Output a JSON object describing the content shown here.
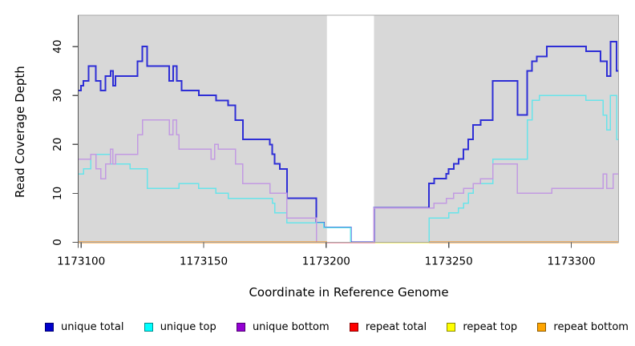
{
  "chart_data": {
    "type": "step-line",
    "title": "",
    "xlabel": "Coordinate in Reference Genome",
    "ylabel": "Read Coverage Depth",
    "xlim": [
      1173098.8,
      1173319.3
    ],
    "ylim": [
      0,
      46.4
    ],
    "grid": false,
    "plot_bg": "#d8d8d8",
    "border_color": "#a8a8a8",
    "axis_color": "#555555",
    "tick_label_color": "#000000",
    "masked_region": {
      "from": 1173200.3,
      "to": 1173219.5,
      "color": "#ffffff"
    },
    "x_ticks": [
      {
        "v": 1173100,
        "label": "1173100"
      },
      {
        "v": 1173150,
        "label": "1173150"
      },
      {
        "v": 1173200,
        "label": "1173200"
      },
      {
        "v": 1173250,
        "label": "1173250"
      },
      {
        "v": 1173300,
        "label": "1173300"
      }
    ],
    "y_ticks": [
      {
        "v": 0,
        "label": "0"
      },
      {
        "v": 10,
        "label": "10"
      },
      {
        "v": 20,
        "label": "20"
      },
      {
        "v": 30,
        "label": "30"
      },
      {
        "v": 40,
        "label": "40"
      }
    ],
    "series": [
      {
        "name": "unique total",
        "color": "#2e2ed6",
        "width": 2,
        "points": [
          [
            1173099,
            31
          ],
          [
            1173100,
            32
          ],
          [
            1173101,
            33
          ],
          [
            1173103,
            36
          ],
          [
            1173106,
            33
          ],
          [
            1173108,
            31
          ],
          [
            1173110,
            34
          ],
          [
            1173112,
            35
          ],
          [
            1173113,
            32
          ],
          [
            1173114,
            34
          ],
          [
            1173123,
            37
          ],
          [
            1173125,
            40
          ],
          [
            1173127,
            36
          ],
          [
            1173136,
            33
          ],
          [
            1173137.5,
            36
          ],
          [
            1173139,
            33
          ],
          [
            1173141,
            31
          ],
          [
            1173148,
            30
          ],
          [
            1173155,
            29
          ],
          [
            1173160,
            28
          ],
          [
            1173163,
            25
          ],
          [
            1173166,
            21
          ],
          [
            1173177,
            20
          ],
          [
            1173178,
            18
          ],
          [
            1173179,
            16
          ],
          [
            1173181,
            15
          ],
          [
            1173184,
            9
          ],
          [
            1173196,
            4
          ],
          [
            1173199,
            3
          ],
          [
            1173210,
            0
          ],
          [
            1173219.5,
            7
          ],
          [
            1173242,
            12
          ],
          [
            1173244,
            13
          ],
          [
            1173249,
            14
          ],
          [
            1173250,
            15
          ],
          [
            1173252,
            16
          ],
          [
            1173254,
            17
          ],
          [
            1173256,
            19
          ],
          [
            1173258,
            21
          ],
          [
            1173260,
            24
          ],
          [
            1173263,
            25
          ],
          [
            1173268,
            33
          ],
          [
            1173278,
            26
          ],
          [
            1173282,
            35
          ],
          [
            1173284,
            37
          ],
          [
            1173286,
            38
          ],
          [
            1173290,
            40
          ],
          [
            1173306,
            39
          ],
          [
            1173312,
            37
          ],
          [
            1173314.5,
            34
          ],
          [
            1173316,
            41
          ],
          [
            1173318.5,
            35
          ]
        ],
        "x_end": 1173319.3
      },
      {
        "name": "unique top",
        "color": "#68e4ea",
        "width": 1.5,
        "points": [
          [
            1173099,
            14
          ],
          [
            1173101,
            15
          ],
          [
            1173104,
            18
          ],
          [
            1173112,
            16
          ],
          [
            1173120,
            15
          ],
          [
            1173127,
            11
          ],
          [
            1173140,
            12
          ],
          [
            1173148,
            11
          ],
          [
            1173155,
            10
          ],
          [
            1173160,
            9
          ],
          [
            1173178,
            8
          ],
          [
            1173179,
            6
          ],
          [
            1173184,
            4
          ],
          [
            1173199,
            3
          ],
          [
            1173210,
            0
          ],
          [
            1173242,
            5
          ],
          [
            1173250,
            6
          ],
          [
            1173254,
            7
          ],
          [
            1173256,
            8
          ],
          [
            1173258,
            10
          ],
          [
            1173260,
            12
          ],
          [
            1173268,
            17
          ],
          [
            1173282,
            25
          ],
          [
            1173284,
            29
          ],
          [
            1173287,
            30
          ],
          [
            1173306,
            29
          ],
          [
            1173313,
            26
          ],
          [
            1173314.5,
            23
          ],
          [
            1173316,
            30
          ],
          [
            1173318.5,
            21
          ]
        ],
        "x_end": 1173319.3
      },
      {
        "name": "unique bottom",
        "color": "#c29ae2",
        "width": 1.5,
        "points": [
          [
            1173099,
            17
          ],
          [
            1173104,
            18
          ],
          [
            1173106,
            15
          ],
          [
            1173108,
            13
          ],
          [
            1173110,
            16
          ],
          [
            1173112,
            19
          ],
          [
            1173113,
            16
          ],
          [
            1173114,
            18
          ],
          [
            1173123,
            22
          ],
          [
            1173125,
            25
          ],
          [
            1173136,
            22
          ],
          [
            1173137.5,
            25
          ],
          [
            1173139,
            22
          ],
          [
            1173140,
            19
          ],
          [
            1173153,
            17
          ],
          [
            1173154.5,
            20
          ],
          [
            1173156,
            19
          ],
          [
            1173163,
            16
          ],
          [
            1173166,
            12
          ],
          [
            1173177,
            10
          ],
          [
            1173184,
            5
          ],
          [
            1173196,
            0
          ],
          [
            1173219.5,
            7
          ],
          [
            1173244,
            8
          ],
          [
            1173249,
            9
          ],
          [
            1173252,
            10
          ],
          [
            1173256,
            11
          ],
          [
            1173260,
            12
          ],
          [
            1173263,
            13
          ],
          [
            1173268,
            16
          ],
          [
            1173278,
            10
          ],
          [
            1173292,
            11
          ],
          [
            1173313,
            14
          ],
          [
            1173314.5,
            11
          ],
          [
            1173317,
            14
          ]
        ],
        "x_end": 1173319.3
      },
      {
        "name": "repeat top",
        "color": "#f0ea00",
        "width": 1.5,
        "value": 0,
        "segments": [
          [
            1173099,
            1173200.3
          ],
          [
            1173219.5,
            1173319.3
          ]
        ]
      },
      {
        "name": "repeat total",
        "color": "#e8506e",
        "width": 1.5,
        "value": 0,
        "segments": [
          [
            1173099,
            1173220
          ],
          [
            1173242,
            1173319.3
          ]
        ]
      },
      {
        "name": "repeat bottom",
        "color": "#ff8c00",
        "width": 1.8,
        "value": 0,
        "segments": [
          [
            1173099,
            1173200.3
          ],
          [
            1173242,
            1173319.3
          ]
        ]
      }
    ]
  },
  "legend": {
    "items": [
      {
        "label": "unique total",
        "color": "#0000cc"
      },
      {
        "label": "unique top",
        "color": "#00ffff"
      },
      {
        "label": "unique bottom",
        "color": "#9400d3"
      },
      {
        "label": "repeat total",
        "color": "#ff0000"
      },
      {
        "label": "repeat top",
        "color": "#ffff00"
      },
      {
        "label": "repeat bottom",
        "color": "#ffa500"
      }
    ]
  }
}
